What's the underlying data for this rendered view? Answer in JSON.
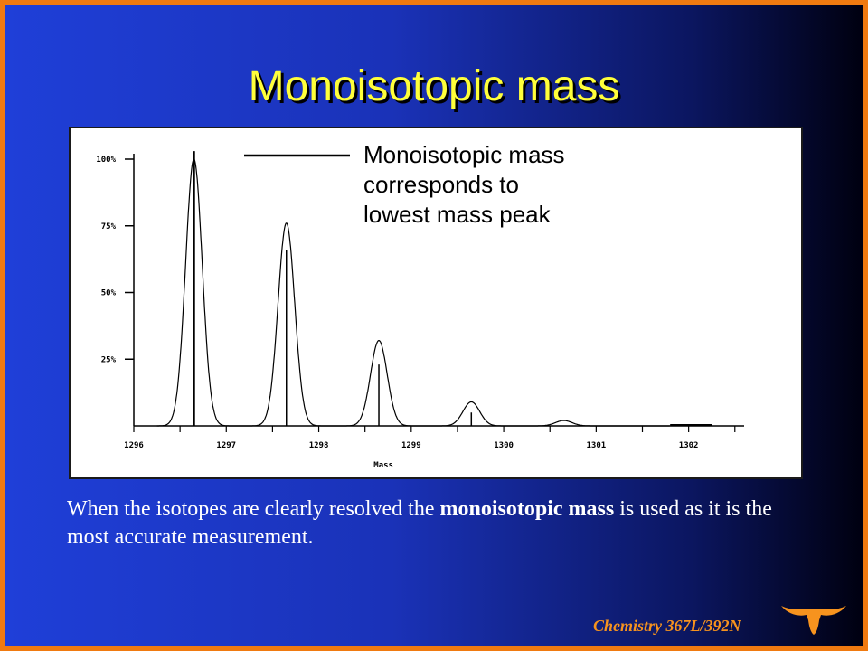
{
  "slide": {
    "title": "Monoisotopic mass",
    "caption_pre": "When the isotopes are clearly resolved the ",
    "caption_bold": "monoisotopic mass",
    "caption_post": " is used as it is the most accurate measurement.",
    "footer": "Chemistry 367L/392N"
  },
  "colors": {
    "background_left": "#1f3fd8",
    "background_right": "#000010",
    "border": "#f07a10",
    "title": "#ffff3a",
    "footer": "#f7931e"
  },
  "icons": {
    "logo": "longhorn-logo"
  },
  "chart_data": {
    "type": "line",
    "title": "",
    "xlabel": "Mass",
    "ylabel": "",
    "xlim": [
      1296,
      1302.6
    ],
    "ylim": [
      0,
      100
    ],
    "x_ticks": [
      1296,
      1297,
      1298,
      1299,
      1300,
      1301,
      1302
    ],
    "y_ticks": [
      25,
      50,
      75,
      100
    ],
    "y_tick_labels": [
      "25%",
      "50%",
      "75%",
      "100%"
    ],
    "grid": false,
    "annotation": [
      "Monoisotopic mass",
      "corresponds to",
      "lowest mass peak"
    ],
    "series": [
      {
        "style": "profile",
        "peaks": [
          {
            "mass": 1296.65,
            "value": 100
          },
          {
            "mass": 1297.65,
            "value": 76
          },
          {
            "mass": 1298.65,
            "value": 32
          },
          {
            "mass": 1299.65,
            "value": 9
          },
          {
            "mass": 1300.65,
            "value": 2
          }
        ]
      },
      {
        "style": "centroid",
        "peaks": [
          {
            "mass": 1296.65,
            "value": 103
          },
          {
            "mass": 1297.65,
            "value": 66
          },
          {
            "mass": 1298.65,
            "value": 23
          },
          {
            "mass": 1299.65,
            "value": 5
          }
        ]
      }
    ]
  }
}
